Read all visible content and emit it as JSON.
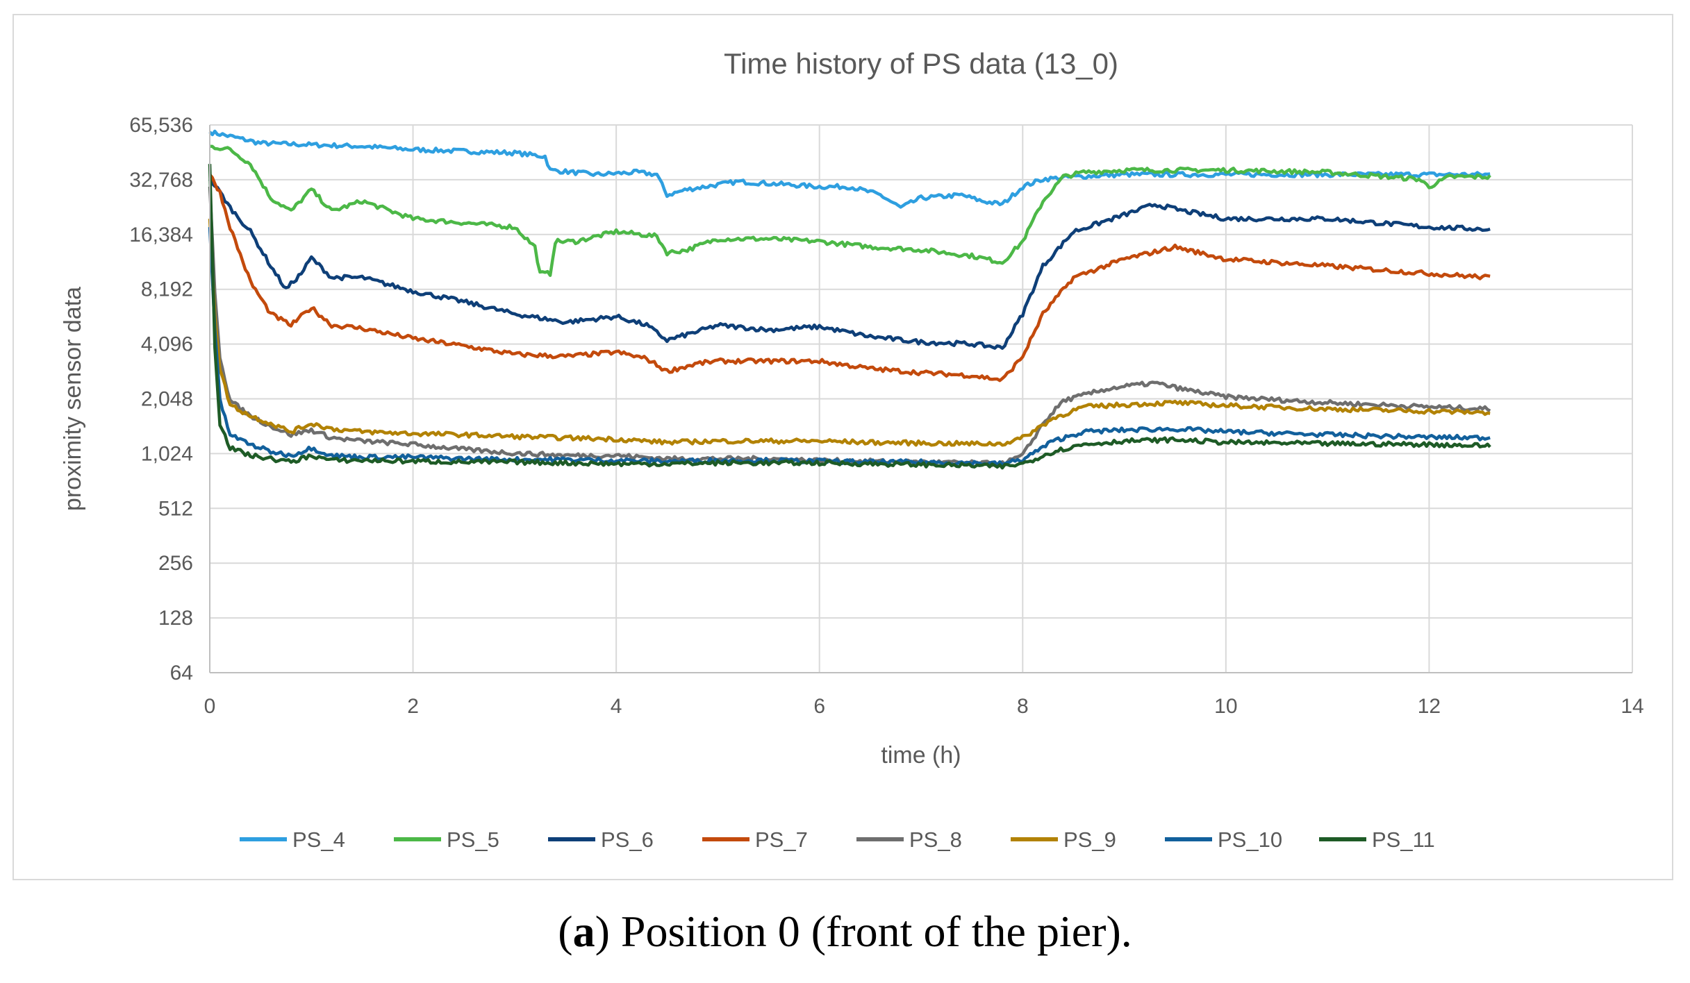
{
  "chart_data": {
    "type": "line",
    "title": "Time history of PS data (13_0)",
    "xlabel": "time (h)",
    "ylabel": "proximity sensor data",
    "xlim": [
      0,
      14
    ],
    "ylim": [
      64,
      65536
    ],
    "yscale": "log2",
    "x_ticks": [
      "0",
      "2",
      "4",
      "6",
      "8",
      "10",
      "12",
      "14"
    ],
    "y_ticks": [
      "64",
      "128",
      "256",
      "512",
      "1,024",
      "2,048",
      "4,096",
      "8,192",
      "16,384",
      "32,768",
      "65,536"
    ],
    "grid": true,
    "legend_position": "bottom",
    "series": [
      {
        "name": "PS_4",
        "color": "#2e9fe0",
        "points": [
          [
            0,
            60000
          ],
          [
            0.25,
            56000
          ],
          [
            0.5,
            52000
          ],
          [
            1,
            51000
          ],
          [
            1.5,
            50000
          ],
          [
            2,
            48000
          ],
          [
            2.5,
            47000
          ],
          [
            3,
            46000
          ],
          [
            3.3,
            44000
          ],
          [
            3.35,
            37000
          ],
          [
            3.8,
            35000
          ],
          [
            4.2,
            36000
          ],
          [
            4.4,
            35000
          ],
          [
            4.5,
            27000
          ],
          [
            4.7,
            29000
          ],
          [
            5.2,
            32000
          ],
          [
            5.6,
            31000
          ],
          [
            6,
            30000
          ],
          [
            6.3,
            30000
          ],
          [
            6.6,
            27000
          ],
          [
            6.8,
            23000
          ],
          [
            7,
            26000
          ],
          [
            7.4,
            27000
          ],
          [
            7.6,
            25000
          ],
          [
            7.8,
            24000
          ],
          [
            8.0,
            30000
          ],
          [
            8.2,
            33000
          ],
          [
            8.5,
            34000
          ],
          [
            9,
            35000
          ],
          [
            10,
            35000
          ],
          [
            11,
            35000
          ],
          [
            12,
            35000
          ],
          [
            12.6,
            35000
          ]
        ]
      },
      {
        "name": "PS_5",
        "color": "#4cb847",
        "points": [
          [
            0,
            50000
          ],
          [
            0.2,
            48000
          ],
          [
            0.4,
            40000
          ],
          [
            0.6,
            26000
          ],
          [
            0.8,
            22000
          ],
          [
            1.0,
            29000
          ],
          [
            1.2,
            22000
          ],
          [
            1.5,
            25000
          ],
          [
            2.0,
            20000
          ],
          [
            2.5,
            19000
          ],
          [
            3.0,
            18000
          ],
          [
            3.2,
            14000
          ],
          [
            3.25,
            10000
          ],
          [
            3.35,
            10000
          ],
          [
            3.4,
            15000
          ],
          [
            3.6,
            15000
          ],
          [
            4.0,
            17000
          ],
          [
            4.4,
            16000
          ],
          [
            4.5,
            13000
          ],
          [
            4.7,
            13500
          ],
          [
            5.0,
            15500
          ],
          [
            5.5,
            15500
          ],
          [
            6.0,
            15000
          ],
          [
            6.5,
            14000
          ],
          [
            7.0,
            13500
          ],
          [
            7.5,
            12500
          ],
          [
            7.8,
            11500
          ],
          [
            8.0,
            15000
          ],
          [
            8.2,
            25000
          ],
          [
            8.4,
            34000
          ],
          [
            8.6,
            36000
          ],
          [
            9,
            37000
          ],
          [
            10,
            37000
          ],
          [
            11,
            36000
          ],
          [
            11.9,
            33000
          ],
          [
            12.0,
            30000
          ],
          [
            12.2,
            34000
          ],
          [
            12.6,
            34000
          ]
        ]
      },
      {
        "name": "PS_6",
        "color": "#0e3f78",
        "points": [
          [
            0,
            33000
          ],
          [
            0.1,
            28000
          ],
          [
            0.2,
            23000
          ],
          [
            0.4,
            17000
          ],
          [
            0.6,
            11000
          ],
          [
            0.75,
            8200
          ],
          [
            0.9,
            10000
          ],
          [
            1.0,
            12200
          ],
          [
            1.2,
            9500
          ],
          [
            1.5,
            9500
          ],
          [
            2.0,
            8000
          ],
          [
            2.5,
            7000
          ],
          [
            3.0,
            6000
          ],
          [
            3.5,
            5400
          ],
          [
            4.0,
            5800
          ],
          [
            4.3,
            5200
          ],
          [
            4.5,
            4300
          ],
          [
            4.8,
            4800
          ],
          [
            5.0,
            5200
          ],
          [
            5.5,
            4900
          ],
          [
            6.0,
            5100
          ],
          [
            6.5,
            4500
          ],
          [
            7.0,
            4200
          ],
          [
            7.5,
            4100
          ],
          [
            7.8,
            3900
          ],
          [
            8.0,
            6000
          ],
          [
            8.2,
            11000
          ],
          [
            8.5,
            17000
          ],
          [
            9.0,
            21000
          ],
          [
            9.3,
            24000
          ],
          [
            9.6,
            22000
          ],
          [
            10,
            20000
          ],
          [
            11,
            20000
          ],
          [
            12,
            18000
          ],
          [
            12.6,
            17500
          ]
        ]
      },
      {
        "name": "PS_7",
        "color": "#c34a0c",
        "points": [
          [
            0,
            35000
          ],
          [
            0.1,
            28000
          ],
          [
            0.2,
            18000
          ],
          [
            0.4,
            9000
          ],
          [
            0.6,
            6000
          ],
          [
            0.8,
            5200
          ],
          [
            1.0,
            6500
          ],
          [
            1.2,
            5200
          ],
          [
            1.5,
            5000
          ],
          [
            2.0,
            4400
          ],
          [
            2.5,
            4000
          ],
          [
            3.0,
            3600
          ],
          [
            3.5,
            3500
          ],
          [
            4.0,
            3700
          ],
          [
            4.3,
            3400
          ],
          [
            4.5,
            2900
          ],
          [
            4.8,
            3200
          ],
          [
            5.0,
            3300
          ],
          [
            5.5,
            3300
          ],
          [
            6.0,
            3300
          ],
          [
            6.5,
            3000
          ],
          [
            7.0,
            2850
          ],
          [
            7.5,
            2750
          ],
          [
            7.8,
            2600
          ],
          [
            8.0,
            3500
          ],
          [
            8.2,
            6000
          ],
          [
            8.5,
            9500
          ],
          [
            9.0,
            12000
          ],
          [
            9.5,
            14000
          ],
          [
            10,
            12000
          ],
          [
            11,
            11000
          ],
          [
            12,
            10000
          ],
          [
            12.6,
            9500
          ]
        ]
      },
      {
        "name": "PS_8",
        "color": "#6e6e6e",
        "points": [
          [
            0,
            30000
          ],
          [
            0.05,
            8000
          ],
          [
            0.1,
            3500
          ],
          [
            0.2,
            2000
          ],
          [
            0.4,
            1650
          ],
          [
            0.6,
            1450
          ],
          [
            0.8,
            1300
          ],
          [
            1.0,
            1380
          ],
          [
            1.2,
            1250
          ],
          [
            1.5,
            1200
          ],
          [
            2.0,
            1150
          ],
          [
            2.5,
            1080
          ],
          [
            3.0,
            1030
          ],
          [
            3.5,
            1000
          ],
          [
            4.0,
            1000
          ],
          [
            4.5,
            960
          ],
          [
            5.0,
            960
          ],
          [
            5.5,
            960
          ],
          [
            6.0,
            940
          ],
          [
            6.5,
            930
          ],
          [
            7.0,
            920
          ],
          [
            7.5,
            910
          ],
          [
            7.8,
            900
          ],
          [
            8.0,
            1000
          ],
          [
            8.2,
            1500
          ],
          [
            8.4,
            2000
          ],
          [
            8.8,
            2300
          ],
          [
            9.0,
            2400
          ],
          [
            9.3,
            2500
          ],
          [
            9.6,
            2300
          ],
          [
            10,
            2100
          ],
          [
            11,
            1950
          ],
          [
            12,
            1850
          ],
          [
            12.6,
            1800
          ]
        ]
      },
      {
        "name": "PS_9",
        "color": "#b28205",
        "points": [
          [
            0,
            20000
          ],
          [
            0.05,
            6000
          ],
          [
            0.1,
            3000
          ],
          [
            0.2,
            1900
          ],
          [
            0.4,
            1650
          ],
          [
            0.6,
            1500
          ],
          [
            0.8,
            1350
          ],
          [
            1.0,
            1500
          ],
          [
            1.2,
            1400
          ],
          [
            1.5,
            1350
          ],
          [
            2.0,
            1320
          ],
          [
            2.5,
            1300
          ],
          [
            3.0,
            1270
          ],
          [
            3.5,
            1250
          ],
          [
            4.0,
            1230
          ],
          [
            4.5,
            1180
          ],
          [
            5.0,
            1200
          ],
          [
            5.5,
            1200
          ],
          [
            6.0,
            1200
          ],
          [
            6.5,
            1180
          ],
          [
            7.0,
            1170
          ],
          [
            7.5,
            1160
          ],
          [
            7.8,
            1160
          ],
          [
            8.0,
            1250
          ],
          [
            8.3,
            1600
          ],
          [
            8.6,
            1850
          ],
          [
            9.0,
            1900
          ],
          [
            9.5,
            1950
          ],
          [
            10,
            1880
          ],
          [
            11,
            1800
          ],
          [
            12,
            1750
          ],
          [
            12.6,
            1720
          ]
        ]
      },
      {
        "name": "PS_10",
        "color": "#12609c",
        "points": [
          [
            0,
            18000
          ],
          [
            0.05,
            5000
          ],
          [
            0.1,
            2000
          ],
          [
            0.2,
            1300
          ],
          [
            0.4,
            1150
          ],
          [
            0.6,
            1050
          ],
          [
            0.8,
            1000
          ],
          [
            1.0,
            1100
          ],
          [
            1.2,
            1000
          ],
          [
            1.5,
            980
          ],
          [
            2.0,
            980
          ],
          [
            2.5,
            960
          ],
          [
            3.0,
            950
          ],
          [
            3.5,
            950
          ],
          [
            4.0,
            940
          ],
          [
            4.5,
            930
          ],
          [
            5.0,
            940
          ],
          [
            5.5,
            940
          ],
          [
            6.0,
            930
          ],
          [
            6.5,
            920
          ],
          [
            7.0,
            920
          ],
          [
            7.5,
            910
          ],
          [
            7.8,
            900
          ],
          [
            8.0,
            950
          ],
          [
            8.3,
            1200
          ],
          [
            8.6,
            1350
          ],
          [
            9.0,
            1380
          ],
          [
            9.5,
            1400
          ],
          [
            10,
            1350
          ],
          [
            11,
            1300
          ],
          [
            12,
            1260
          ],
          [
            12.6,
            1250
          ]
        ]
      },
      {
        "name": "PS_11",
        "color": "#1e5b26",
        "points": [
          [
            0,
            40000
          ],
          [
            0.05,
            4000
          ],
          [
            0.1,
            1500
          ],
          [
            0.2,
            1100
          ],
          [
            0.4,
            1000
          ],
          [
            0.6,
            960
          ],
          [
            0.8,
            920
          ],
          [
            1.0,
            1000
          ],
          [
            1.2,
            940
          ],
          [
            1.5,
            940
          ],
          [
            2.0,
            930
          ],
          [
            2.5,
            920
          ],
          [
            3.0,
            920
          ],
          [
            3.5,
            910
          ],
          [
            4.0,
            900
          ],
          [
            4.5,
            900
          ],
          [
            5.0,
            910
          ],
          [
            5.5,
            910
          ],
          [
            6.0,
            910
          ],
          [
            6.5,
            900
          ],
          [
            7.0,
            890
          ],
          [
            7.5,
            880
          ],
          [
            7.8,
            870
          ],
          [
            8.0,
            900
          ],
          [
            8.3,
            1050
          ],
          [
            8.6,
            1150
          ],
          [
            9.0,
            1200
          ],
          [
            9.5,
            1220
          ],
          [
            10,
            1180
          ],
          [
            11,
            1160
          ],
          [
            12,
            1150
          ],
          [
            12.6,
            1130
          ]
        ]
      }
    ]
  },
  "caption": {
    "label": "a",
    "text": " Position 0 (front of the pier)."
  }
}
